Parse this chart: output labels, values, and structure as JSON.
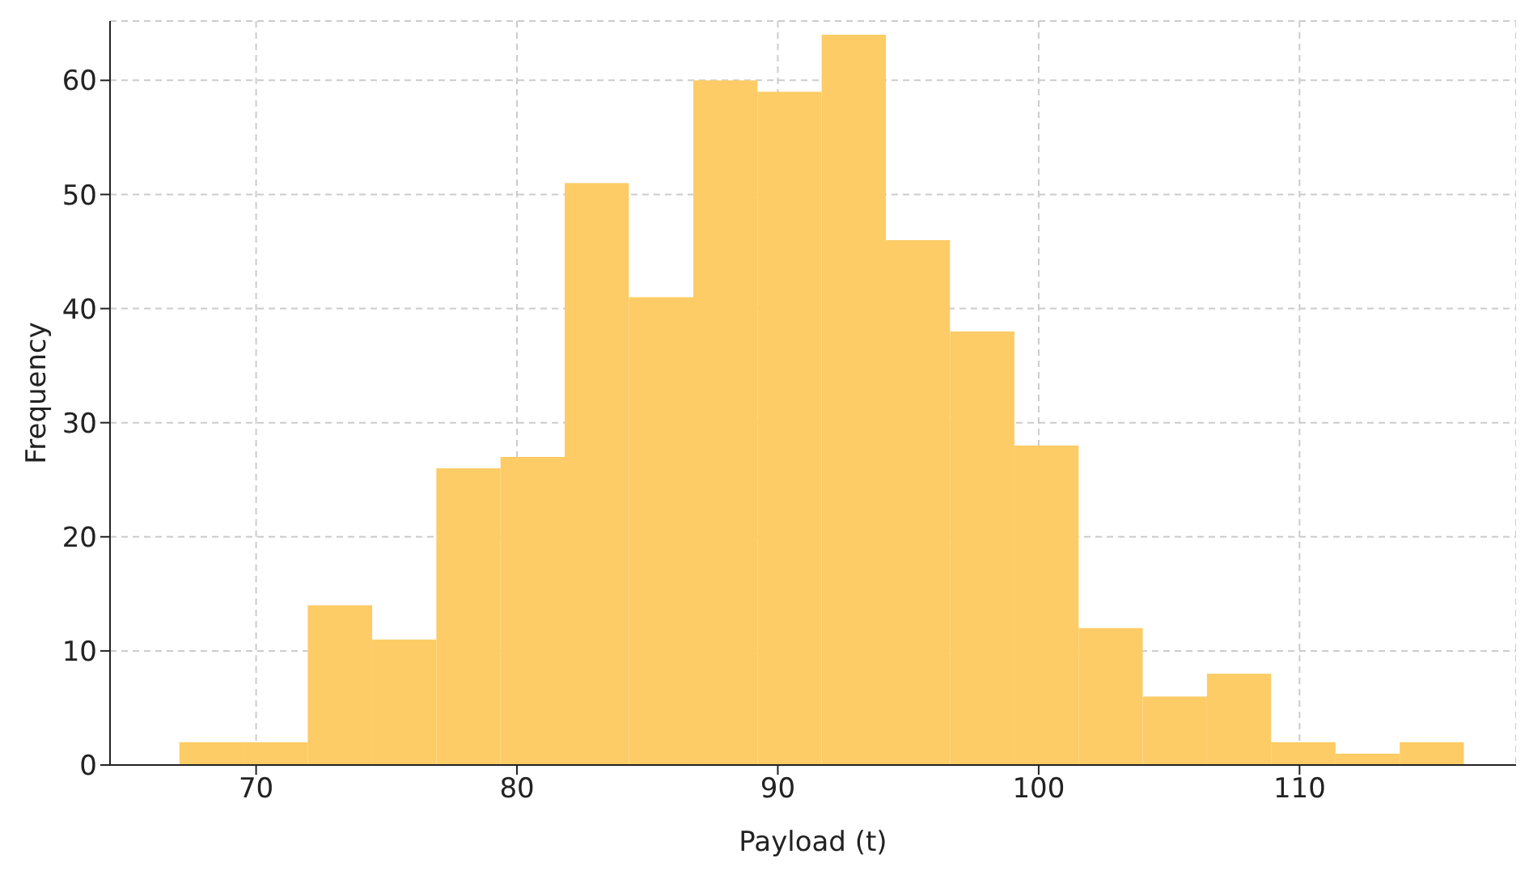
{
  "chart_data": {
    "type": "histogram",
    "xlabel": "Payload (t)",
    "ylabel": "Frequency",
    "bins": [
      67.06,
      69.52,
      71.98,
      74.45,
      76.91,
      79.37,
      81.83,
      84.29,
      86.76,
      89.22,
      91.68,
      94.14,
      96.6,
      99.07,
      101.53,
      103.99,
      106.45,
      108.91,
      111.38,
      113.84,
      116.3
    ],
    "values": [
      2,
      2,
      14,
      11,
      26,
      27,
      51,
      41,
      60,
      59,
      64,
      46,
      38,
      28,
      12,
      6,
      8,
      2,
      1,
      2
    ],
    "color": "#fdcc66",
    "xlim": [
      64.4,
      118.3
    ],
    "xticks": [
      70,
      80,
      90,
      100,
      110
    ],
    "ylim": [
      0,
      65.2
    ],
    "yticks": [
      0,
      10,
      20,
      30,
      40,
      50,
      60
    ],
    "grid": true
  }
}
